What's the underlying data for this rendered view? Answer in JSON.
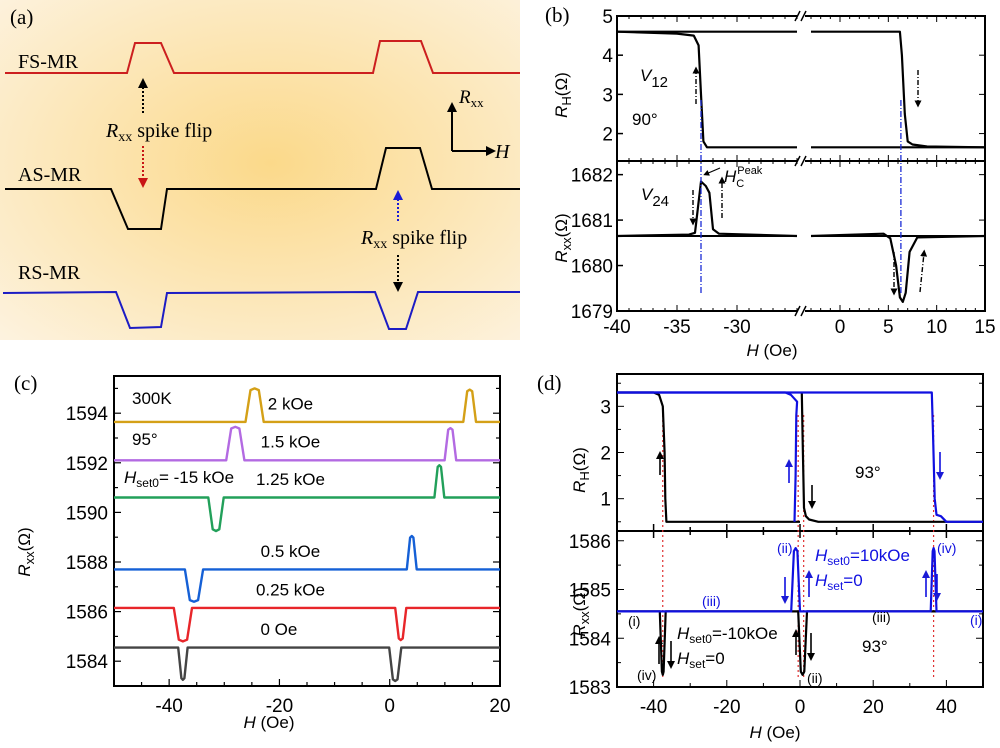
{
  "chart_data": [
    {
      "panel": "(a)",
      "type": "schematic",
      "labels": {
        "fs": "FS-MR",
        "as": "AS-MR",
        "rs": "RS-MR",
        "flip1_R": "R",
        "flip1_sub": "xx",
        "flip1_text": " spike flip",
        "flip2_R": "R",
        "flip2_sub": "xx",
        "flip2_text": " spike flip",
        "axis_y_R": "R",
        "axis_y_sub": "xx",
        "axis_x": "H"
      },
      "traces": [
        {
          "name": "FS-MR",
          "color": "#cc1f1f",
          "spikes": [
            "up",
            "up"
          ]
        },
        {
          "name": "AS-MR",
          "color": "#000000",
          "spikes": [
            "down",
            "up"
          ]
        },
        {
          "name": "RS-MR",
          "color": "#1c1cc4",
          "spikes": [
            "down",
            "down"
          ]
        }
      ],
      "colors": {
        "bg_center": "#fbd98a",
        "bg_edge": "#fdf3e1"
      }
    },
    {
      "panel": "(b)",
      "type": "line",
      "xlabel_H": "H",
      "xlabel_unit": " (Oe)",
      "x_segments": [
        [
          -40,
          -25
        ],
        [
          -3,
          15
        ]
      ],
      "x_ticks": [
        "-40",
        "-35",
        "-30",
        "0",
        "5",
        "10",
        "15"
      ],
      "x_tick_values": [
        -40,
        -35,
        -30,
        0,
        5,
        10,
        15
      ],
      "top": {
        "ylabel_R": "R",
        "ylabel_sub": "H",
        "ylabel_unit": "(Ω)",
        "ylim": [
          1.3,
          5
        ],
        "y_ticks": [
          "5",
          "4",
          "3",
          "2"
        ],
        "y_tick_values": [
          5,
          4,
          3,
          2
        ],
        "annot_V": "V",
        "annot_Vsub": "12",
        "annot_angle": "90°",
        "series": [
          {
            "name": "RH sweep up",
            "color": "#000000",
            "x": [
              -40,
              -35,
              -33.6,
              -33.2,
              -33.0,
              -32.8,
              -32.5,
              -25
            ],
            "y": [
              4.6,
              4.55,
              4.5,
              4.25,
              3.0,
              1.8,
              1.65,
              1.65
            ]
          },
          {
            "name": "RH sweep down",
            "color": "#000000",
            "x": [
              -3,
              6.2,
              6.4,
              6.7,
              7.0,
              7.5,
              9,
              15
            ],
            "y": [
              4.6,
              4.6,
              4.0,
              2.5,
              1.8,
              1.72,
              1.67,
              1.65
            ]
          },
          {
            "name": "RH high flat",
            "color": "#000000",
            "x": [
              -40,
              -25
            ],
            "y": [
              4.6,
              4.6
            ]
          },
          {
            "name": "RH low flat",
            "color": "#000000",
            "x": [
              -3,
              15
            ],
            "y": [
              1.65,
              1.65
            ]
          }
        ]
      },
      "bottom": {
        "ylabel_R": "R",
        "ylabel_sub": "xx",
        "ylabel_unit": "(Ω)",
        "ylim": [
          1679,
          1682.3
        ],
        "y_ticks": [
          "1682",
          "1681",
          "1680",
          "1679"
        ],
        "y_tick_values": [
          1682,
          1681,
          1680,
          1679
        ],
        "annot_V": "V",
        "annot_Vsub": "24",
        "annot_peak_H": "H",
        "annot_peak_sub": "C",
        "annot_peak_sup": "Peak",
        "series": [
          {
            "name": "Rxx spike up",
            "color": "#000000",
            "x": [
              -40,
              -34,
              -33.5,
              -33.0,
              -32.6,
              -32.3,
              -32.0,
              -31.5,
              -25
            ],
            "y": [
              1680.65,
              1680.68,
              1680.72,
              1681.85,
              1681.75,
              1681.6,
              1680.8,
              1680.7,
              1680.65
            ]
          },
          {
            "name": "Rxx spike down",
            "color": "#000000",
            "x": [
              -3,
              4.5,
              5.2,
              5.8,
              6.2,
              6.5,
              6.8,
              7.2,
              8,
              15
            ],
            "y": [
              1680.65,
              1680.7,
              1680.6,
              1680.0,
              1679.3,
              1679.2,
              1679.4,
              1680.3,
              1680.62,
              1680.65
            ]
          }
        ],
        "vlines_H": [
          -33.0,
          6.3
        ],
        "vline_color": "#1a2bd6"
      }
    },
    {
      "panel": "(c)",
      "type": "line",
      "xlabel_H": "H",
      "xlabel_unit": " (Oe)",
      "xlim": [
        -50,
        20
      ],
      "ylim": [
        1583,
        1595.5
      ],
      "x_ticks": [
        "-40",
        "-20",
        "0",
        "20"
      ],
      "x_tick_values": [
        -40,
        -20,
        0,
        20
      ],
      "y_ticks": [
        "1594",
        "1592",
        "1590",
        "1588",
        "1586",
        "1584"
      ],
      "y_tick_values": [
        1594,
        1592,
        1590,
        1588,
        1586,
        1584
      ],
      "ylabel_R": "R",
      "ylabel_sub": "xx",
      "ylabel_unit": "(Ω)",
      "annot_temp": "300K",
      "annot_angle": "95°",
      "annot_Hset0": "H",
      "annot_Hset0_sub": "set0",
      "annot_Hset0_val": "= -15 kOe",
      "series": [
        {
          "name": "2 kOe",
          "color": "#d4a017",
          "baseline": 1593.65,
          "spikes": [
            {
              "center": -24.5,
              "width": 2.5,
              "amp": 1.35
            },
            {
              "center": 14.5,
              "width": 1.5,
              "amp": 1.3
            }
          ]
        },
        {
          "name": "1.5 kOe",
          "color": "#b36ae2",
          "baseline": 1592.1,
          "spikes": [
            {
              "center": -28.0,
              "width": 2.5,
              "amp": 1.35
            },
            {
              "center": 11.0,
              "width": 1.3,
              "amp": 1.3
            }
          ]
        },
        {
          "name": "1.25 kOe",
          "color": "#22a05a",
          "baseline": 1590.6,
          "spikes": [
            {
              "center": -31.5,
              "width": 2.0,
              "amp": -1.35
            },
            {
              "center": 9.0,
              "width": 1.0,
              "amp": 1.3
            }
          ]
        },
        {
          "name": "0.5 kOe",
          "color": "#1560d6",
          "baseline": 1587.7,
          "spikes": [
            {
              "center": -35.5,
              "width": 2.5,
              "amp": -1.3
            },
            {
              "center": 4.0,
              "width": 1.0,
              "amp": 1.35
            }
          ]
        },
        {
          "name": "0.25 kOe",
          "color": "#e8262a",
          "baseline": 1586.15,
          "spikes": [
            {
              "center": -37.5,
              "width": 2.5,
              "amp": -1.35
            },
            {
              "center": 2.0,
              "width": 1.2,
              "amp": -1.3
            }
          ]
        },
        {
          "name": "0 Oe",
          "color": "#444444",
          "baseline": 1584.55,
          "spikes": [
            {
              "center": -37.5,
              "width": 0.9,
              "amp": -1.3
            },
            {
              "center": 1.0,
              "width": 1.4,
              "amp": -1.35
            }
          ]
        }
      ],
      "series_labels": [
        "2 kOe",
        "1.5 kOe",
        "1.25 kOe",
        "0.5 kOe",
        "0.25 kOe",
        "0 Oe"
      ]
    },
    {
      "panel": "(d)",
      "type": "line",
      "xlabel_H": "H",
      "xlabel_unit": " (Oe)",
      "xlim": [
        -50,
        50
      ],
      "x_ticks": [
        "-40",
        "-20",
        "0",
        "20",
        "40"
      ],
      "x_tick_values": [
        -40,
        -20,
        0,
        20,
        40
      ],
      "top": {
        "ylabel_R": "R",
        "ylabel_sub": "H",
        "ylabel_unit": "(Ω)",
        "ylim": [
          0.3,
          3.7
        ],
        "y_ticks": [
          "3",
          "2",
          "1"
        ],
        "y_tick_values": [
          3,
          2,
          1
        ],
        "annot_angle": "93°",
        "series": [
          {
            "name": "black RH up",
            "color": "#000000",
            "x": [
              -50,
              -40,
              -38.5,
              -37.5,
              -37.0,
              -36.8,
              -36.5,
              0
            ],
            "y": [
              3.3,
              3.3,
              3.25,
              3.0,
              2.0,
              1.0,
              0.5,
              0.5
            ]
          },
          {
            "name": "black RH down",
            "color": "#000000",
            "x": [
              0.5,
              0.8,
              1.1,
              1.6,
              2.5,
              5,
              50
            ],
            "y": [
              3.3,
              2.0,
              0.8,
              0.62,
              0.55,
              0.5,
              0.5
            ]
          },
          {
            "name": "blue RH high",
            "color": "#1010e0",
            "x": [
              -50,
              36,
              36.3,
              36.8,
              37.3,
              38.5,
              40,
              50
            ],
            "y": [
              3.3,
              3.3,
              2.5,
              1.0,
              0.65,
              0.62,
              0.5,
              0.5
            ]
          },
          {
            "name": "blue RH up",
            "color": "#1010e0",
            "x": [
              -1.5,
              -1.2,
              -1.0,
              -0.8,
              -2.5,
              -4,
              -50
            ],
            "y": [
              0.5,
              1.5,
              2.8,
              3.1,
              3.25,
              3.3,
              3.3
            ]
          }
        ],
        "vlines_H": [
          -37.5,
          -0.5,
          1.0,
          36.5
        ],
        "vline_color": "#e03030"
      },
      "bottom": {
        "ylabel_R": "R",
        "ylabel_sub": "xx",
        "ylabel_unit": "(Ω)",
        "ylim": [
          1583,
          1586.2
        ],
        "y_ticks": [
          "1586",
          "1585",
          "1584",
          "1583"
        ],
        "y_tick_values": [
          1586,
          1585,
          1584,
          1583
        ],
        "annot_angle": "93°",
        "annot_blue_Hset0": "H",
        "annot_blue_Hset0_sub": "set0",
        "annot_blue_Hset0_val": "=10kOe",
        "annot_blue_Hset": "H",
        "annot_blue_Hset_sub": "set",
        "annot_blue_Hset_val": "=0",
        "annot_black_Hset0": "H",
        "annot_black_Hset0_sub": "set0",
        "annot_black_Hset0_val": "=-10kOe",
        "annot_black_Hset": "H",
        "annot_black_Hset_sub": "set",
        "annot_black_Hset_val": "=0",
        "roman": {
          "i": "(i)",
          "ii": "(ii)",
          "iii": "(iii)",
          "iv": "(iv)"
        },
        "series": [
          {
            "name": "black Rxx (Hset0=-10kOe)",
            "color": "#000000",
            "baseline": 1584.55,
            "spikes": [
              {
                "center": -37.5,
                "width": 0.8,
                "amp": -1.3
              },
              {
                "center": 0.7,
                "width": 1.6,
                "amp": -1.3
              }
            ]
          },
          {
            "name": "blue Rxx (Hset0=10kOe)",
            "color": "#1010e0",
            "baseline": 1584.55,
            "spikes": [
              {
                "center": -1.2,
                "width": 1.6,
                "amp": 1.3
              },
              {
                "center": 36.5,
                "width": 0.8,
                "amp": 1.3
              }
            ]
          }
        ],
        "vlines_H": [
          -37.5,
          -0.5,
          1.0,
          36.5
        ],
        "vline_color": "#e03030"
      }
    }
  ]
}
